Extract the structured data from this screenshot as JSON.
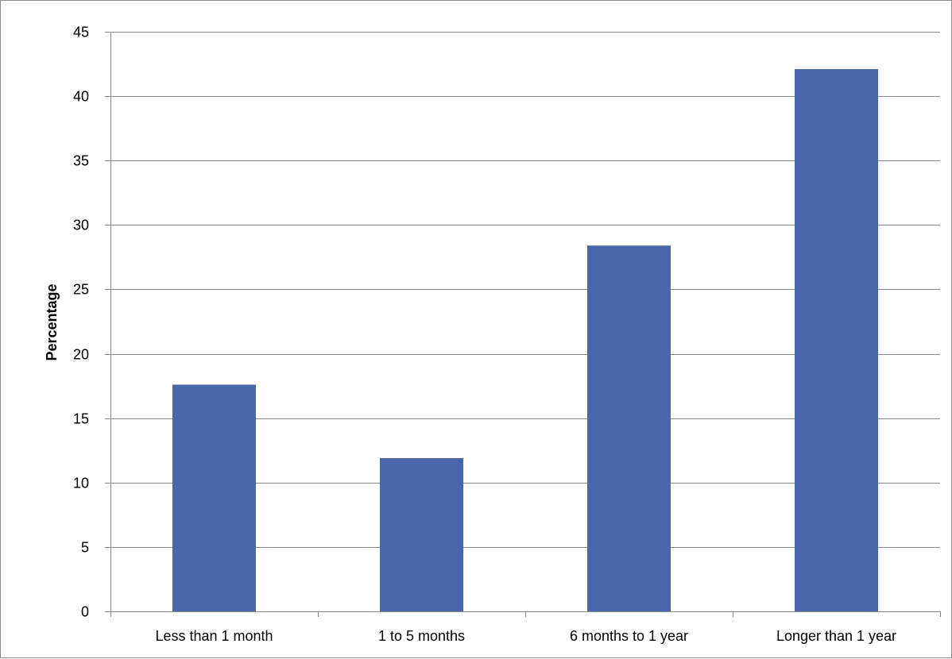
{
  "chart_data": {
    "type": "bar",
    "title": "",
    "xlabel": "",
    "ylabel": "Percentage",
    "categories": [
      "Less than 1 month",
      "1 to 5 months",
      "6 months to 1 year",
      "Longer than 1 year"
    ],
    "values": [
      17.6,
      11.9,
      28.4,
      42.1
    ],
    "ylim": [
      0,
      45
    ],
    "yticks": [
      0,
      5,
      10,
      15,
      20,
      25,
      30,
      35,
      40,
      45
    ],
    "grid": true,
    "legend": "none",
    "colors": {
      "bar": "#4a67ae",
      "grid": "#868686",
      "axis": "#868686"
    }
  }
}
